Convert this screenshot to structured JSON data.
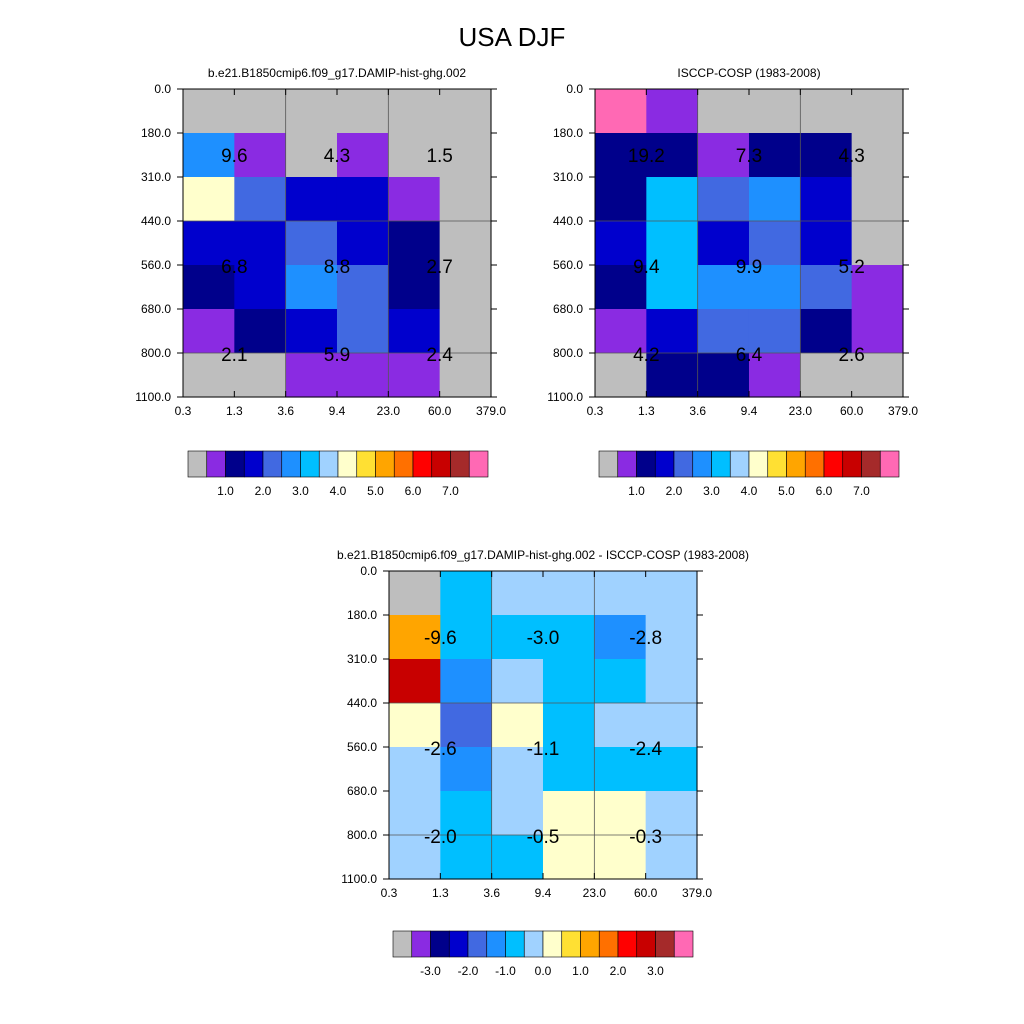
{
  "page_title": "USA DJF",
  "x_tick_labels": [
    "0.3",
    "1.3",
    "3.6",
    "9.4",
    "23.0",
    "60.0",
    "379.0"
  ],
  "y_tick_labels": [
    "0.0",
    "180.0",
    "310.0",
    "440.0",
    "560.0",
    "680.0",
    "800.0",
    "1100.0"
  ],
  "chart_data": [
    {
      "type": "heatmap",
      "title": "b.e21.B1850cmip6.f09_g17.DAMIP-hist-ghg.002",
      "xlabel": "",
      "ylabel": "",
      "cell_colors": [
        [
          "#bebebe",
          "#bebebe",
          "#bebebe",
          "#bebebe",
          "#bebebe",
          "#bebebe"
        ],
        [
          "#1e90ff",
          "#8a2be2",
          "#bebebe",
          "#8a2be2",
          "#bebebe",
          "#bebebe"
        ],
        [
          "#ffffcc",
          "#4169e1",
          "#0000cd",
          "#0000cd",
          "#8a2be2",
          "#bebebe"
        ],
        [
          "#0000cd",
          "#0000cd",
          "#4169e1",
          "#0000cd",
          "#00008b",
          "#bebebe"
        ],
        [
          "#00008b",
          "#0000cd",
          "#1e90ff",
          "#4169e1",
          "#00008b",
          "#bebebe"
        ],
        [
          "#8a2be2",
          "#00008b",
          "#0000cd",
          "#4169e1",
          "#0000cd",
          "#bebebe"
        ],
        [
          "#bebebe",
          "#bebebe",
          "#8a2be2",
          "#8a2be2",
          "#8a2be2",
          "#bebebe"
        ]
      ],
      "annotations": [
        {
          "text": "9.6",
          "col": 1,
          "y": 155
        },
        {
          "text": "4.3",
          "col": 3,
          "y": 155
        },
        {
          "text": "1.5",
          "col": 5,
          "y": 155
        },
        {
          "text": "6.8",
          "col": 1,
          "y": 266
        },
        {
          "text": "8.8",
          "col": 3,
          "y": 266
        },
        {
          "text": "2.7",
          "col": 5,
          "y": 266
        },
        {
          "text": "2.1",
          "col": 1,
          "y": 354
        },
        {
          "text": "5.9",
          "col": 3,
          "y": 354
        },
        {
          "text": "2.4",
          "col": 5,
          "y": 354
        }
      ],
      "colorbar": {
        "colors": [
          "#bebebe",
          "#8a2be2",
          "#00008b",
          "#0000cd",
          "#4169e1",
          "#1e90ff",
          "#00bfff",
          "#a0d2ff",
          "#ffffcc",
          "#ffe033",
          "#ffa500",
          "#ff7000",
          "#ff0000",
          "#c80000",
          "#a52a2a",
          "#ff69b4"
        ],
        "labels": [
          "1.0",
          "2.0",
          "3.0",
          "4.0",
          "5.0",
          "6.0",
          "7.0"
        ]
      }
    },
    {
      "type": "heatmap",
      "title": "ISCCP-COSP (1983-2008)",
      "xlabel": "",
      "ylabel": "",
      "cell_colors": [
        [
          "#ff69b4",
          "#8a2be2",
          "#bebebe",
          "#bebebe",
          "#bebebe",
          "#bebebe"
        ],
        [
          "#00008b",
          "#00008b",
          "#8a2be2",
          "#00008b",
          "#00008b",
          "#bebebe"
        ],
        [
          "#00008b",
          "#00bfff",
          "#4169e1",
          "#1e90ff",
          "#0000cd",
          "#bebebe"
        ],
        [
          "#0000cd",
          "#00bfff",
          "#0000cd",
          "#4169e1",
          "#0000cd",
          "#bebebe"
        ],
        [
          "#00008b",
          "#00bfff",
          "#1e90ff",
          "#1e90ff",
          "#4169e1",
          "#8a2be2"
        ],
        [
          "#8a2be2",
          "#0000cd",
          "#4169e1",
          "#4169e1",
          "#00008b",
          "#8a2be2"
        ],
        [
          "#bebebe",
          "#00008b",
          "#00008b",
          "#8a2be2",
          "#bebebe",
          "#bebebe"
        ]
      ],
      "annotations": [
        {
          "text": "19.2",
          "col": 1,
          "y": 155
        },
        {
          "text": "7.3",
          "col": 3,
          "y": 155
        },
        {
          "text": "4.3",
          "col": 5,
          "y": 155
        },
        {
          "text": "9.4",
          "col": 1,
          "y": 266
        },
        {
          "text": "9.9",
          "col": 3,
          "y": 266
        },
        {
          "text": "5.2",
          "col": 5,
          "y": 266
        },
        {
          "text": "4.2",
          "col": 1,
          "y": 354
        },
        {
          "text": "6.4",
          "col": 3,
          "y": 354
        },
        {
          "text": "2.6",
          "col": 5,
          "y": 354
        }
      ],
      "colorbar": {
        "colors": [
          "#bebebe",
          "#8a2be2",
          "#00008b",
          "#0000cd",
          "#4169e1",
          "#1e90ff",
          "#00bfff",
          "#a0d2ff",
          "#ffffcc",
          "#ffe033",
          "#ffa500",
          "#ff7000",
          "#ff0000",
          "#c80000",
          "#a52a2a",
          "#ff69b4"
        ],
        "labels": [
          "1.0",
          "2.0",
          "3.0",
          "4.0",
          "5.0",
          "6.0",
          "7.0"
        ]
      }
    },
    {
      "type": "heatmap",
      "title": "b.e21.B1850cmip6.f09_g17.DAMIP-hist-ghg.002 - ISCCP-COSP (1983-2008)",
      "xlabel": "",
      "ylabel": "",
      "cell_colors": [
        [
          "#bebebe",
          "#00bfff",
          "#a0d2ff",
          "#a0d2ff",
          "#a0d2ff",
          "#a0d2ff"
        ],
        [
          "#ffa500",
          "#00bfff",
          "#00bfff",
          "#00bfff",
          "#1e90ff",
          "#a0d2ff"
        ],
        [
          "#c80000",
          "#1e90ff",
          "#a0d2ff",
          "#00bfff",
          "#00bfff",
          "#a0d2ff"
        ],
        [
          "#ffffcc",
          "#4169e1",
          "#ffffcc",
          "#00bfff",
          "#a0d2ff",
          "#a0d2ff"
        ],
        [
          "#a0d2ff",
          "#1e90ff",
          "#a0d2ff",
          "#00bfff",
          "#00bfff",
          "#00bfff"
        ],
        [
          "#a0d2ff",
          "#00bfff",
          "#a0d2ff",
          "#ffffcc",
          "#ffffcc",
          "#a0d2ff"
        ],
        [
          "#a0d2ff",
          "#00bfff",
          "#00bfff",
          "#ffffcc",
          "#ffffcc",
          "#a0d2ff"
        ]
      ],
      "annotations": [
        {
          "text": "-9.6",
          "col": 1,
          "y": 155
        },
        {
          "text": "-3.0",
          "col": 3,
          "y": 155
        },
        {
          "text": "-2.8",
          "col": 5,
          "y": 155
        },
        {
          "text": "-2.6",
          "col": 1,
          "y": 266
        },
        {
          "text": "-1.1",
          "col": 3,
          "y": 266
        },
        {
          "text": "-2.4",
          "col": 5,
          "y": 266
        },
        {
          "text": "-2.0",
          "col": 1,
          "y": 354
        },
        {
          "text": "-0.5",
          "col": 3,
          "y": 354
        },
        {
          "text": "-0.3",
          "col": 5,
          "y": 354
        }
      ],
      "colorbar": {
        "colors": [
          "#bebebe",
          "#8a2be2",
          "#00008b",
          "#0000cd",
          "#4169e1",
          "#1e90ff",
          "#00bfff",
          "#a0d2ff",
          "#ffffcc",
          "#ffe033",
          "#ffa500",
          "#ff7000",
          "#ff0000",
          "#c80000",
          "#a52a2a",
          "#ff69b4"
        ],
        "labels": [
          "-3.0",
          "-2.0",
          "-1.0",
          "0.0",
          "1.0",
          "2.0",
          "3.0"
        ]
      }
    }
  ]
}
